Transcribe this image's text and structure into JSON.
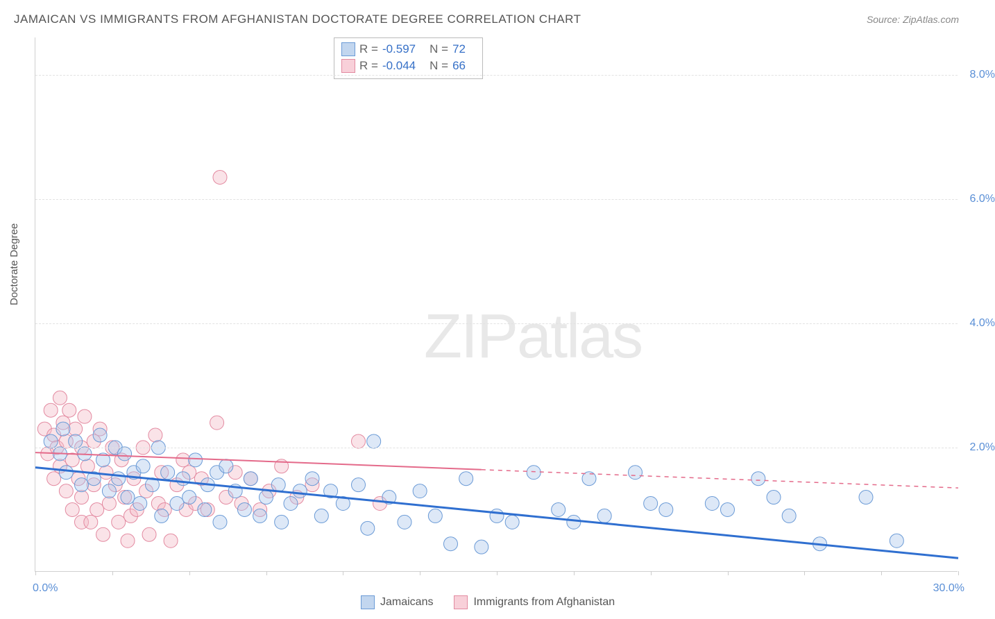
{
  "title": "JAMAICAN VS IMMIGRANTS FROM AFGHANISTAN DOCTORATE DEGREE CORRELATION CHART",
  "source": "Source: ZipAtlas.com",
  "ylabel": "Doctorate Degree",
  "watermark_zip": "ZIP",
  "watermark_atlas": "atlas",
  "legend": {
    "series1_label": "Jamaicans",
    "series2_label": "Immigrants from Afghanistan"
  },
  "stats": {
    "r_label": "R = ",
    "n_label": "N = ",
    "series1_R": "-0.597",
    "series1_N": "72",
    "series2_R": "-0.044",
    "series2_N": "66"
  },
  "chart": {
    "type": "scatter",
    "xlim": [
      0,
      30
    ],
    "ylim": [
      0,
      8.6
    ],
    "x_ticks": [
      0,
      2.5,
      5,
      7.5,
      10,
      12.5,
      15,
      17.5,
      20,
      22.5,
      25,
      27.5,
      30
    ],
    "y_gridlines": [
      2,
      4,
      6,
      8
    ],
    "x_label_min": "0.0%",
    "x_label_max": "30.0%",
    "y_tick_labels": {
      "2": "2.0%",
      "4": "4.0%",
      "6": "6.0%",
      "8": "8.0%"
    },
    "background_color": "#ffffff",
    "grid_color": "#e2e2e2",
    "axis_color": "#d0d0d0",
    "tick_color": "#5a8fd6",
    "marker_radius": 10,
    "marker_opacity": 0.4,
    "series1": {
      "name": "Jamaicans",
      "fill": "#a9c6ea",
      "stroke": "#6a9ad6",
      "trend": {
        "color": "#2f6fd0",
        "width": 3,
        "y_at_x0": 1.68,
        "y_at_xmax": 0.22,
        "solid_extent_x": 30
      },
      "points": [
        [
          0.5,
          2.1
        ],
        [
          0.8,
          1.9
        ],
        [
          0.9,
          2.3
        ],
        [
          1.0,
          1.6
        ],
        [
          1.3,
          2.1
        ],
        [
          1.5,
          1.4
        ],
        [
          1.6,
          1.9
        ],
        [
          1.9,
          1.5
        ],
        [
          2.1,
          2.2
        ],
        [
          2.2,
          1.8
        ],
        [
          2.4,
          1.3
        ],
        [
          2.6,
          2.0
        ],
        [
          2.7,
          1.5
        ],
        [
          2.9,
          1.9
        ],
        [
          3.0,
          1.2
        ],
        [
          3.2,
          1.6
        ],
        [
          3.4,
          1.1
        ],
        [
          3.5,
          1.7
        ],
        [
          3.8,
          1.4
        ],
        [
          4.0,
          2.0
        ],
        [
          4.1,
          0.9
        ],
        [
          4.3,
          1.6
        ],
        [
          4.6,
          1.1
        ],
        [
          4.8,
          1.5
        ],
        [
          5.0,
          1.2
        ],
        [
          5.2,
          1.8
        ],
        [
          5.5,
          1.0
        ],
        [
          5.6,
          1.4
        ],
        [
          5.9,
          1.6
        ],
        [
          6.0,
          0.8
        ],
        [
          6.2,
          1.7
        ],
        [
          6.5,
          1.3
        ],
        [
          6.8,
          1.0
        ],
        [
          7.0,
          1.5
        ],
        [
          7.3,
          0.9
        ],
        [
          7.5,
          1.2
        ],
        [
          7.9,
          1.4
        ],
        [
          8.0,
          0.8
        ],
        [
          8.3,
          1.1
        ],
        [
          8.6,
          1.3
        ],
        [
          9.0,
          1.5
        ],
        [
          9.3,
          0.9
        ],
        [
          9.6,
          1.3
        ],
        [
          10.0,
          1.1
        ],
        [
          10.5,
          1.4
        ],
        [
          10.8,
          0.7
        ],
        [
          11.0,
          2.1
        ],
        [
          11.5,
          1.2
        ],
        [
          12.0,
          0.8
        ],
        [
          12.5,
          1.3
        ],
        [
          13.0,
          0.9
        ],
        [
          13.5,
          0.45
        ],
        [
          14.0,
          1.5
        ],
        [
          14.5,
          0.4
        ],
        [
          15.0,
          0.9
        ],
        [
          15.5,
          0.8
        ],
        [
          16.2,
          1.6
        ],
        [
          17.0,
          1.0
        ],
        [
          17.5,
          0.8
        ],
        [
          18.0,
          1.5
        ],
        [
          18.5,
          0.9
        ],
        [
          19.5,
          1.6
        ],
        [
          20.0,
          1.1
        ],
        [
          20.5,
          1.0
        ],
        [
          22.0,
          1.1
        ],
        [
          22.5,
          1.0
        ],
        [
          23.5,
          1.5
        ],
        [
          24.0,
          1.2
        ],
        [
          24.5,
          0.9
        ],
        [
          25.5,
          0.45
        ],
        [
          27.0,
          1.2
        ],
        [
          28.0,
          0.5
        ]
      ]
    },
    "series2": {
      "name": "Immigrants from Afghanistan",
      "fill": "#f3b9c6",
      "stroke": "#e389a0",
      "trend": {
        "color": "#e46a8a",
        "width": 2,
        "y_at_x0": 1.92,
        "y_at_xmax": 1.35,
        "solid_extent_x": 14.5
      },
      "points": [
        [
          0.3,
          2.3
        ],
        [
          0.4,
          1.9
        ],
        [
          0.5,
          2.6
        ],
        [
          0.6,
          2.2
        ],
        [
          0.6,
          1.5
        ],
        [
          0.7,
          2.0
        ],
        [
          0.8,
          2.8
        ],
        [
          0.8,
          1.7
        ],
        [
          0.9,
          2.4
        ],
        [
          1.0,
          2.1
        ],
        [
          1.0,
          1.3
        ],
        [
          1.1,
          2.6
        ],
        [
          1.2,
          1.8
        ],
        [
          1.2,
          1.0
        ],
        [
          1.3,
          2.3
        ],
        [
          1.4,
          1.5
        ],
        [
          1.5,
          2.0
        ],
        [
          1.5,
          1.2
        ],
        [
          1.5,
          0.8
        ],
        [
          1.6,
          2.5
        ],
        [
          1.7,
          1.7
        ],
        [
          1.8,
          0.8
        ],
        [
          1.9,
          2.1
        ],
        [
          1.9,
          1.4
        ],
        [
          2.0,
          1.0
        ],
        [
          2.1,
          2.3
        ],
        [
          2.2,
          0.6
        ],
        [
          2.3,
          1.6
        ],
        [
          2.4,
          1.1
        ],
        [
          2.5,
          2.0
        ],
        [
          2.6,
          1.4
        ],
        [
          2.7,
          0.8
        ],
        [
          2.8,
          1.8
        ],
        [
          2.9,
          1.2
        ],
        [
          3.0,
          0.5
        ],
        [
          3.1,
          0.9
        ],
        [
          3.2,
          1.5
        ],
        [
          3.3,
          1.0
        ],
        [
          3.5,
          2.0
        ],
        [
          3.6,
          1.3
        ],
        [
          3.7,
          0.6
        ],
        [
          3.9,
          2.2
        ],
        [
          4.0,
          1.1
        ],
        [
          4.1,
          1.6
        ],
        [
          4.2,
          1.0
        ],
        [
          4.4,
          0.5
        ],
        [
          4.6,
          1.4
        ],
        [
          4.8,
          1.8
        ],
        [
          4.9,
          1.0
        ],
        [
          5.0,
          1.6
        ],
        [
          5.2,
          1.1
        ],
        [
          5.4,
          1.5
        ],
        [
          5.6,
          1.0
        ],
        [
          5.9,
          2.4
        ],
        [
          6.0,
          6.35
        ],
        [
          6.2,
          1.2
        ],
        [
          6.5,
          1.6
        ],
        [
          6.7,
          1.1
        ],
        [
          7.0,
          1.5
        ],
        [
          7.3,
          1.0
        ],
        [
          7.6,
          1.3
        ],
        [
          8.0,
          1.7
        ],
        [
          8.5,
          1.2
        ],
        [
          9.0,
          1.4
        ],
        [
          10.5,
          2.1
        ],
        [
          11.2,
          1.1
        ]
      ]
    }
  }
}
